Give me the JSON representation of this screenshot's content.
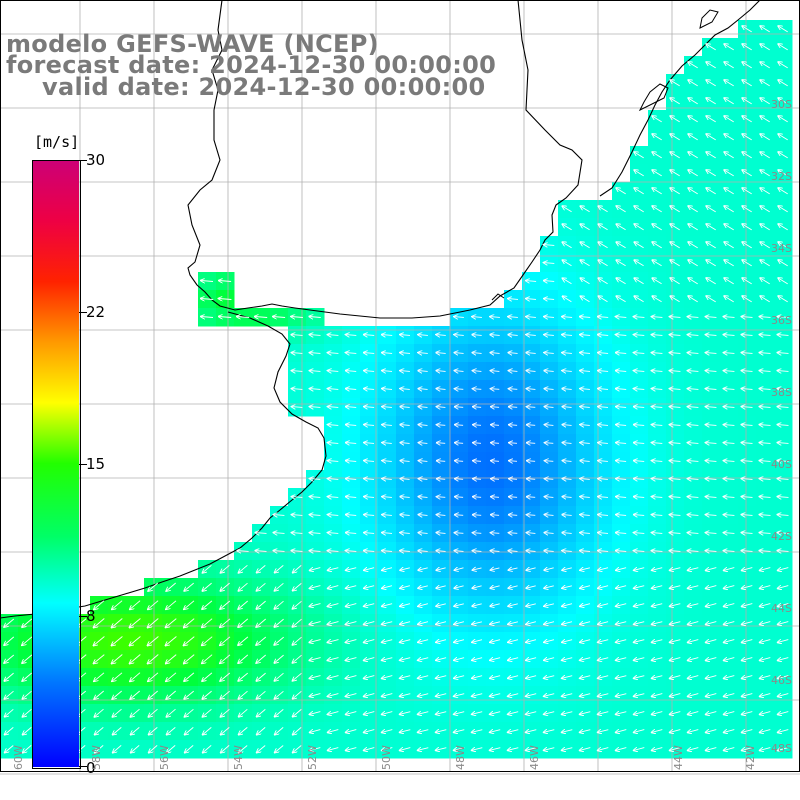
{
  "title": {
    "line1": "modelo GEFS-WAVE (NCEP)",
    "line2": "forecast date: 2024-12-30 00:00:00",
    "line3": "valid date: 2024-12-30 00:00:00"
  },
  "colorbar": {
    "unit": "[m/s]",
    "ticks": [
      "30",
      "22",
      "15",
      "8",
      "0"
    ]
  },
  "grid": {
    "lat_labels": [
      "30S",
      "32S",
      "34S",
      "36S",
      "38S",
      "40S",
      "42S",
      "44S",
      "46S",
      "48S"
    ],
    "lon_labels": [
      "60W",
      "58W",
      "56W",
      "54W",
      "52W",
      "50W",
      "48W",
      "46W",
      "44W",
      "42W"
    ]
  },
  "colors": {
    "land": "#ffffff",
    "grid": "#b0b0b0",
    "coast": "#000000",
    "arrow": "#ffffff"
  }
}
